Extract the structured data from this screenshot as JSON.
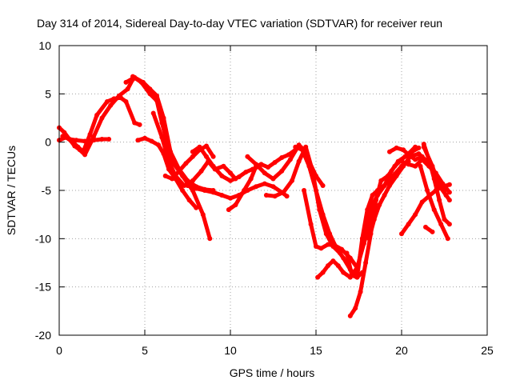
{
  "chart_data": {
    "type": "scatter",
    "title": "Day 314 of 2014, Sidereal Day-to-day VTEC variation (SDTVAR) for receiver reun",
    "xlabel": "GPS time / hours",
    "ylabel": "SDTVAR / TECUs",
    "xlim": [
      0,
      25
    ],
    "ylim": [
      -20,
      10
    ],
    "x_ticks": [
      "0",
      "5",
      "10",
      "15",
      "20",
      "25"
    ],
    "y_ticks": [
      "-20",
      "-15",
      "-10",
      "-5",
      "0",
      "5",
      "10"
    ],
    "grid": true,
    "legend": "none",
    "color": "#ff0000",
    "series": [
      {
        "x": [
          0.0,
          0.3,
          0.6,
          0.9,
          1.2,
          1.5,
          2.0,
          2.5,
          3.0,
          3.5,
          4.0,
          4.3
        ],
        "y": [
          1.5,
          1.0,
          0.3,
          -0.4,
          -0.8,
          -1.3,
          0.5,
          2.5,
          3.8,
          4.8,
          5.5,
          6.5
        ]
      },
      {
        "x": [
          0.0,
          0.4,
          0.8,
          1.1,
          1.4,
          1.8,
          2.2,
          2.8,
          3.2,
          3.6,
          3.9,
          4.4,
          4.7
        ],
        "y": [
          0.2,
          0.5,
          0.0,
          -0.5,
          -1.0,
          0.8,
          2.8,
          4.2,
          4.5,
          4.6,
          4.2,
          2.0,
          1.8
        ]
      },
      {
        "x": [
          0.2,
          0.6,
          1.0,
          1.5,
          2.0,
          2.5,
          2.9
        ],
        "y": [
          0.6,
          0.3,
          0.2,
          0.1,
          0.2,
          0.3,
          0.3
        ]
      },
      {
        "x": [
          4.3,
          4.8,
          5.3,
          5.7,
          6.0,
          6.3,
          6.6,
          7.2,
          7.8,
          8.4,
          8.8
        ],
        "y": [
          6.8,
          6.2,
          5.0,
          4.3,
          2.0,
          0.0,
          -2.0,
          -3.5,
          -5.0,
          -7.5,
          -10.0
        ]
      },
      {
        "x": [
          3.9,
          4.4,
          4.9,
          5.3,
          5.7,
          6.1,
          6.5,
          7.0,
          7.5,
          8.0,
          8.5,
          9.0
        ],
        "y": [
          6.2,
          6.7,
          6.2,
          5.5,
          4.8,
          2.5,
          -1.0,
          -2.8,
          -4.0,
          -4.6,
          -4.9,
          -5.0
        ]
      },
      {
        "x": [
          4.6,
          5.0,
          5.4,
          5.8,
          6.1,
          6.4,
          6.8,
          7.2,
          7.6,
          8.0
        ],
        "y": [
          0.2,
          0.4,
          0.1,
          -0.3,
          -1.2,
          -2.8,
          -3.8,
          -5.0,
          -6.0,
          -6.8
        ]
      },
      {
        "x": [
          5.5,
          6.0,
          6.4,
          6.8,
          7.3,
          7.8,
          8.3,
          8.7,
          9.1,
          9.6,
          10.0,
          10.3
        ],
        "y": [
          3.0,
          0.5,
          -2.0,
          -3.5,
          -4.5,
          -4.0,
          -3.0,
          -2.0,
          -2.8,
          -2.5,
          -3.2,
          -3.8
        ]
      },
      {
        "x": [
          6.2,
          6.6,
          7.0,
          7.4,
          7.8,
          8.2,
          8.6,
          9.0
        ],
        "y": [
          -3.5,
          -3.8,
          -3.0,
          -2.2,
          -1.5,
          -0.8,
          -0.4,
          -1.5
        ]
      },
      {
        "x": [
          7.8,
          8.2,
          8.6,
          9.0,
          9.5,
          10.0,
          10.5,
          10.9,
          11.3,
          11.7
        ],
        "y": [
          -1.0,
          -0.5,
          -1.5,
          -2.5,
          -3.5,
          -4.0,
          -3.6,
          -3.1,
          -2.8,
          -2.5
        ]
      },
      {
        "x": [
          7.5,
          8.0,
          8.5,
          9.0,
          9.5,
          10.0,
          10.5,
          11.0,
          11.5,
          12.0,
          12.5,
          13.0,
          13.3
        ],
        "y": [
          -4.5,
          -4.8,
          -5.0,
          -5.2,
          -5.5,
          -5.8,
          -5.5,
          -5.0,
          -4.6,
          -4.3,
          -4.6,
          -5.2,
          -5.6
        ]
      },
      {
        "x": [
          9.9,
          10.3,
          10.8,
          11.2,
          11.5,
          11.8,
          12.2,
          12.6,
          13.0,
          13.4,
          13.8
        ],
        "y": [
          -7.0,
          -6.5,
          -5.0,
          -3.8,
          -2.5,
          -2.3,
          -2.6,
          -2.1,
          -1.6,
          -1.3,
          -0.8
        ]
      },
      {
        "x": [
          11.0,
          11.5,
          12.0,
          12.5,
          13.0,
          13.5,
          14.0,
          14.3,
          14.6,
          15.0,
          15.4
        ],
        "y": [
          -1.5,
          -2.3,
          -3.2,
          -3.8,
          -3.0,
          -1.8,
          -0.3,
          -0.8,
          -2.0,
          -3.5,
          -4.5
        ]
      },
      {
        "x": [
          12.1,
          12.6,
          13.1,
          13.6,
          14.0,
          14.4,
          14.8,
          15.2,
          15.6,
          16.0,
          16.4,
          16.8
        ],
        "y": [
          -5.5,
          -5.6,
          -5.2,
          -4.0,
          -2.0,
          -0.5,
          -3.0,
          -7.0,
          -9.5,
          -10.8,
          -11.5,
          -12.5
        ]
      },
      {
        "x": [
          13.8,
          14.2,
          14.6,
          15.0,
          15.4,
          15.8,
          16.2,
          16.6,
          17.0,
          17.4,
          17.7
        ],
        "y": [
          -0.5,
          -0.8,
          -2.5,
          -5.0,
          -7.5,
          -9.5,
          -11.0,
          -12.0,
          -13.2,
          -14.0,
          -13.5
        ]
      },
      {
        "x": [
          14.3,
          14.7,
          15.0,
          15.3,
          15.7,
          16.1,
          16.5,
          17.0,
          17.4
        ],
        "y": [
          -5.0,
          -8.5,
          -10.8,
          -11.0,
          -10.6,
          -10.7,
          -11.1,
          -12.0,
          -13.0
        ]
      },
      {
        "x": [
          15.1,
          15.4,
          15.7,
          16.0,
          16.3,
          16.6,
          17.0,
          17.4,
          17.8,
          18.2,
          18.5
        ],
        "y": [
          -14.0,
          -13.5,
          -12.8,
          -12.3,
          -12.8,
          -13.5,
          -14.0,
          -13.0,
          -10.5,
          -8.0,
          -6.0
        ]
      },
      {
        "x": [
          16.8,
          17.1,
          17.4,
          17.7,
          18.0,
          18.3,
          18.6,
          19.0,
          19.5,
          20.0,
          20.4
        ],
        "y": [
          -11.5,
          -13.8,
          -14.0,
          -10.0,
          -7.0,
          -5.5,
          -5.0,
          -4.5,
          -3.5,
          -2.5,
          -2.0
        ]
      },
      {
        "x": [
          17.0,
          17.3,
          17.6,
          17.9,
          18.2,
          18.5,
          18.8,
          19.2,
          19.6,
          20.0,
          20.4,
          20.8
        ],
        "y": [
          -18.0,
          -17.2,
          -15.5,
          -12.5,
          -9.5,
          -6.0,
          -4.0,
          -3.5,
          -2.5,
          -1.8,
          -1.2,
          -0.5
        ]
      },
      {
        "x": [
          17.4,
          17.7,
          18.0,
          18.3,
          18.6,
          19.0,
          19.4,
          19.8,
          20.2,
          20.6,
          21.0
        ],
        "y": [
          -13.5,
          -10.5,
          -8.0,
          -6.5,
          -5.5,
          -4.5,
          -3.0,
          -2.0,
          -1.5,
          -1.0,
          -0.6
        ]
      },
      {
        "x": [
          18.1,
          18.4,
          18.7,
          19.0,
          19.3,
          19.7,
          20.1,
          20.5,
          21.0,
          21.5,
          22.0,
          22.6
        ],
        "y": [
          -10.0,
          -8.0,
          -6.5,
          -5.5,
          -4.5,
          -3.5,
          -2.5,
          -1.5,
          -1.2,
          -2.0,
          -3.5,
          -5.5
        ]
      },
      {
        "x": [
          19.3,
          19.7,
          20.1,
          20.4,
          20.8,
          21.2
        ],
        "y": [
          -1.0,
          -0.6,
          -0.8,
          -1.3,
          -1.8,
          -1.5
        ]
      },
      {
        "x": [
          20.0,
          20.4,
          20.8,
          21.2,
          21.6,
          22.0,
          22.4,
          22.8
        ],
        "y": [
          -9.5,
          -8.5,
          -7.5,
          -6.2,
          -5.6,
          -5.0,
          -4.6,
          -4.4
        ]
      },
      {
        "x": [
          20.0,
          20.4,
          20.8,
          21.2,
          21.6,
          22.0,
          22.4,
          22.8
        ],
        "y": [
          -2.0,
          -2.3,
          -2.5,
          -1.8,
          -2.5,
          -3.2,
          -4.3,
          -5.2
        ]
      },
      {
        "x": [
          21.3,
          21.8,
          22.2,
          22.6,
          22.8
        ],
        "y": [
          -0.5,
          -2.5,
          -4.5,
          -5.5,
          -6.0
        ]
      },
      {
        "x": [
          21.3,
          21.6,
          21.9,
          22.2,
          22.5,
          22.8
        ],
        "y": [
          -0.2,
          -1.8,
          -3.8,
          -6.0,
          -8.0,
          -8.5
        ]
      },
      {
        "x": [
          21.1,
          21.5,
          21.9,
          22.3,
          22.7
        ],
        "y": [
          -2.5,
          -5.0,
          -7.0,
          -8.5,
          -10.0
        ]
      },
      {
        "x": [
          21.4,
          21.8
        ],
        "y": [
          -8.8,
          -9.3
        ]
      }
    ]
  }
}
